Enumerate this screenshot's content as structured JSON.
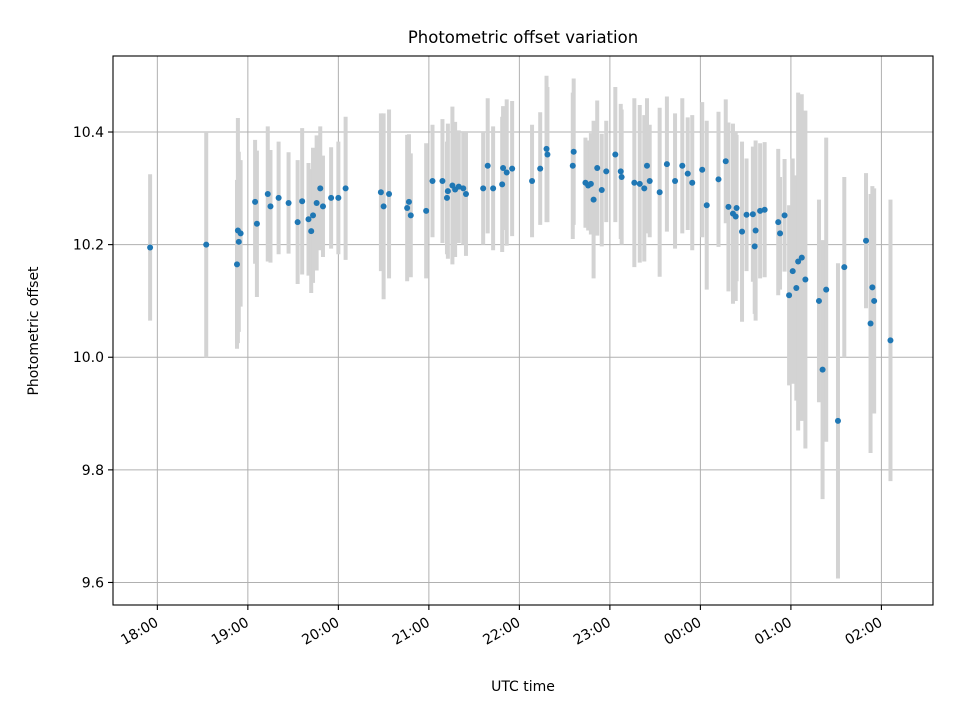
{
  "chart_data": {
    "type": "scatter",
    "title": "Photometric offset variation",
    "xlabel": "UTC time",
    "ylabel": "Photometric offset",
    "x_tick_labels": [
      "18:00",
      "19:00",
      "20:00",
      "21:00",
      "22:00",
      "23:00",
      "00:00",
      "01:00",
      "02:00"
    ],
    "y_tick_labels": [
      "9.6",
      "9.8",
      "10.0",
      "10.2",
      "10.4"
    ],
    "x_ticks_hours": [
      0,
      1,
      2,
      3,
      4,
      5,
      6,
      7,
      8
    ],
    "y_ticks": [
      9.6,
      9.8,
      10.0,
      10.2,
      10.4
    ],
    "xlim_hours": [
      -0.49,
      8.57
    ],
    "ylim": [
      9.56,
      10.535
    ],
    "grid": true,
    "colors": {
      "points": "#1f77b4",
      "error_bars": "#d3d3d3"
    },
    "x_hours_from_first_tick": [
      -0.08,
      0.54,
      0.88,
      0.89,
      0.9,
      0.92,
      1.08,
      1.1,
      1.22,
      1.25,
      1.34,
      1.45,
      1.55,
      1.6,
      1.67,
      1.7,
      1.72,
      1.76,
      1.8,
      1.83,
      1.92,
      2.0,
      2.08,
      2.47,
      2.5,
      2.56,
      2.76,
      2.78,
      2.8,
      2.97,
      3.04,
      3.15,
      3.2,
      3.21,
      3.26,
      3.29,
      3.33,
      3.38,
      3.41,
      3.6,
      3.65,
      3.71,
      3.81,
      3.82,
      3.86,
      3.92,
      4.14,
      4.23,
      4.3,
      4.31,
      4.59,
      4.6,
      4.73,
      4.76,
      4.79,
      4.82,
      4.86,
      4.91,
      4.96,
      5.06,
      5.12,
      5.13,
      5.27,
      5.33,
      5.38,
      5.41,
      5.44,
      5.55,
      5.63,
      5.72,
      5.8,
      5.86,
      5.91,
      6.02,
      6.07,
      6.2,
      6.28,
      6.31,
      6.36,
      6.39,
      6.4,
      6.46,
      6.51,
      6.58,
      6.6,
      6.61,
      6.66,
      6.71,
      6.86,
      6.88,
      6.93,
      6.98,
      7.02,
      7.06,
      7.08,
      7.12,
      7.16,
      7.31,
      7.35,
      7.39,
      7.52,
      7.59,
      7.83,
      7.88,
      7.9,
      7.92,
      8.1
    ],
    "y": [
      10.195,
      10.2,
      10.165,
      10.225,
      10.205,
      10.22,
      10.276,
      10.237,
      10.29,
      10.268,
      10.283,
      10.274,
      10.24,
      10.277,
      10.245,
      10.224,
      10.252,
      10.274,
      10.3,
      10.268,
      10.283,
      10.283,
      10.3,
      10.293,
      10.268,
      10.29,
      10.265,
      10.276,
      10.252,
      10.26,
      10.313,
      10.313,
      10.283,
      10.295,
      10.305,
      10.298,
      10.303,
      10.3,
      10.29,
      10.3,
      10.34,
      10.3,
      10.307,
      10.336,
      10.328,
      10.335,
      10.313,
      10.335,
      10.37,
      10.36,
      10.34,
      10.365,
      10.31,
      10.305,
      10.308,
      10.28,
      10.336,
      10.297,
      10.33,
      10.36,
      10.33,
      10.32,
      10.31,
      10.308,
      10.3,
      10.34,
      10.313,
      10.293,
      10.343,
      10.313,
      10.34,
      10.326,
      10.31,
      10.333,
      10.27,
      10.316,
      10.348,
      10.267,
      10.255,
      10.25,
      10.265,
      10.223,
      10.253,
      10.254,
      10.197,
      10.225,
      10.26,
      10.262,
      10.24,
      10.22,
      10.252,
      10.11,
      10.153,
      10.123,
      10.17,
      10.177,
      10.138,
      10.1,
      9.978,
      10.12,
      9.887,
      10.16,
      10.207,
      10.06,
      10.124,
      10.1,
      10.03
    ],
    "error": [
      0.13,
      0.2,
      0.15,
      0.2,
      0.16,
      0.13,
      0.11,
      0.13,
      0.12,
      0.1,
      0.1,
      0.09,
      0.11,
      0.13,
      0.1,
      0.11,
      0.12,
      0.12,
      0.11,
      0.09,
      0.09,
      0.1,
      0.127,
      0.14,
      0.165,
      0.15,
      0.13,
      0.12,
      0.11,
      0.12,
      0.1,
      0.11,
      0.1,
      0.12,
      0.14,
      0.12,
      0.1,
      0.1,
      0.11,
      0.1,
      0.12,
      0.11,
      0.12,
      0.11,
      0.13,
      0.12,
      0.1,
      0.1,
      0.13,
      0.12,
      0.13,
      0.13,
      0.08,
      0.08,
      0.09,
      0.14,
      0.12,
      0.1,
      0.09,
      0.12,
      0.12,
      0.12,
      0.15,
      0.14,
      0.13,
      0.12,
      0.1,
      0.15,
      0.12,
      0.12,
      0.12,
      0.1,
      0.12,
      0.12,
      0.15,
      0.12,
      0.11,
      0.15,
      0.16,
      0.15,
      0.13,
      0.16,
      0.1,
      0.12,
      0.12,
      0.16,
      0.12,
      0.12,
      0.13,
      0.1,
      0.1,
      0.16,
      0.2,
      0.2,
      0.3,
      0.29,
      0.3,
      0.18,
      0.23,
      0.27,
      0.28,
      0.16,
      0.12,
      0.23,
      0.18,
      0.2,
      0.25
    ]
  }
}
